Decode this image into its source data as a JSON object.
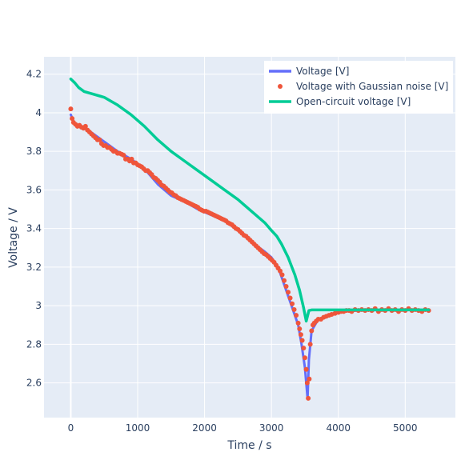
{
  "chart_data": {
    "type": "line",
    "title": "",
    "xlabel": "Time / s",
    "ylabel": "Voltage / V",
    "xlim": [
      -400,
      5750
    ],
    "ylim": [
      2.42,
      4.29
    ],
    "x_ticks": [
      0,
      1000,
      2000,
      3000,
      4000,
      5000
    ],
    "y_ticks": [
      2.6,
      2.8,
      3,
      3.2,
      3.4,
      3.6,
      3.8,
      4,
      4.2
    ],
    "x_tick_labels": [
      "0",
      "1000",
      "2000",
      "3000",
      "4000",
      "5000"
    ],
    "y_tick_labels": [
      "2.6",
      "2.8",
      "3",
      "3.2",
      "3.4",
      "3.6",
      "3.8",
      "4",
      "4.2"
    ],
    "grid": true,
    "legend_position": "top-right",
    "colors": {
      "plot_bg": "#e5ecf6",
      "grid": "#ffffff",
      "text": "#2a3f5f"
    },
    "series": [
      {
        "name": "Voltage [V]",
        "mode": "line",
        "color": "#636efa",
        "x": [
          0,
          60,
          150,
          300,
          500,
          700,
          900,
          1100,
          1300,
          1500,
          1700,
          1900,
          2100,
          2300,
          2500,
          2700,
          2900,
          3000,
          3100,
          3200,
          3300,
          3400,
          3450,
          3500,
          3540,
          3560,
          3600,
          3700,
          3850,
          4000,
          4300,
          4700,
          5000,
          5350
        ],
        "y": [
          3.99,
          3.94,
          3.93,
          3.9,
          3.85,
          3.8,
          3.76,
          3.71,
          3.63,
          3.57,
          3.54,
          3.5,
          3.47,
          3.44,
          3.39,
          3.33,
          3.28,
          3.25,
          3.2,
          3.1,
          3.0,
          2.9,
          2.8,
          2.68,
          2.52,
          2.72,
          2.87,
          2.93,
          2.95,
          2.97,
          2.975,
          2.978,
          2.978,
          2.978
        ]
      },
      {
        "name": "Voltage with Gaussian noise [V]",
        "mode": "markers",
        "color": "#ef553b",
        "x": [
          0,
          20,
          40,
          70,
          100,
          130,
          160,
          190,
          220,
          250,
          280,
          310,
          340,
          370,
          400,
          430,
          460,
          490,
          520,
          550,
          580,
          610,
          640,
          670,
          700,
          730,
          760,
          790,
          820,
          850,
          880,
          910,
          940,
          970,
          1000,
          1030,
          1060,
          1090,
          1120,
          1150,
          1180,
          1210,
          1240,
          1270,
          1300,
          1330,
          1360,
          1390,
          1420,
          1450,
          1480,
          1510,
          1540,
          1570,
          1600,
          1630,
          1660,
          1690,
          1720,
          1750,
          1780,
          1810,
          1840,
          1870,
          1900,
          1930,
          1960,
          1990,
          2020,
          2050,
          2080,
          2110,
          2140,
          2170,
          2200,
          2230,
          2260,
          2290,
          2320,
          2350,
          2380,
          2410,
          2440,
          2470,
          2500,
          2530,
          2560,
          2590,
          2620,
          2650,
          2680,
          2710,
          2740,
          2770,
          2800,
          2830,
          2860,
          2890,
          2920,
          2950,
          2980,
          3010,
          3040,
          3070,
          3100,
          3130,
          3160,
          3190,
          3220,
          3250,
          3280,
          3310,
          3340,
          3370,
          3400,
          3420,
          3440,
          3460,
          3480,
          3500,
          3520,
          3535,
          3550,
          3565,
          3580,
          3600,
          3620,
          3640,
          3670,
          3700,
          3740,
          3780,
          3820,
          3860,
          3900,
          3950,
          4000,
          4040,
          4080,
          4120,
          4160,
          4200,
          4250,
          4300,
          4350,
          4400,
          4450,
          4500,
          4550,
          4600,
          4650,
          4700,
          4750,
          4800,
          4850,
          4900,
          4950,
          5000,
          5050,
          5100,
          5150,
          5200,
          5250,
          5300,
          5350
        ],
        "y": [
          4.02,
          3.97,
          3.95,
          3.94,
          3.93,
          3.935,
          3.925,
          3.92,
          3.93,
          3.91,
          3.9,
          3.89,
          3.88,
          3.87,
          3.86,
          3.86,
          3.84,
          3.83,
          3.83,
          3.82,
          3.82,
          3.81,
          3.8,
          3.8,
          3.79,
          3.79,
          3.785,
          3.78,
          3.76,
          3.76,
          3.75,
          3.76,
          3.74,
          3.74,
          3.73,
          3.725,
          3.72,
          3.71,
          3.7,
          3.7,
          3.69,
          3.68,
          3.665,
          3.66,
          3.65,
          3.64,
          3.625,
          3.62,
          3.61,
          3.6,
          3.59,
          3.585,
          3.575,
          3.57,
          3.56,
          3.555,
          3.55,
          3.545,
          3.54,
          3.535,
          3.53,
          3.525,
          3.52,
          3.515,
          3.51,
          3.5,
          3.495,
          3.49,
          3.49,
          3.485,
          3.48,
          3.475,
          3.47,
          3.465,
          3.46,
          3.455,
          3.45,
          3.445,
          3.44,
          3.43,
          3.425,
          3.42,
          3.41,
          3.4,
          3.395,
          3.385,
          3.375,
          3.365,
          3.36,
          3.35,
          3.34,
          3.33,
          3.32,
          3.31,
          3.3,
          3.29,
          3.28,
          3.27,
          3.265,
          3.255,
          3.245,
          3.235,
          3.225,
          3.21,
          3.195,
          3.18,
          3.16,
          3.13,
          3.1,
          3.07,
          3.04,
          3.01,
          2.98,
          2.95,
          2.91,
          2.88,
          2.85,
          2.82,
          2.78,
          2.73,
          2.67,
          2.6,
          2.52,
          2.62,
          2.8,
          2.87,
          2.9,
          2.91,
          2.92,
          2.93,
          2.93,
          2.94,
          2.945,
          2.95,
          2.955,
          2.96,
          2.965,
          2.97,
          2.97,
          2.975,
          2.975,
          2.97,
          2.98,
          2.975,
          2.98,
          2.975,
          2.98,
          2.975,
          2.985,
          2.97,
          2.98,
          2.975,
          2.985,
          2.975,
          2.98,
          2.97,
          2.98,
          2.975,
          2.985,
          2.975,
          2.98,
          2.975,
          2.97,
          2.98,
          2.975
        ]
      },
      {
        "name": "Open-circuit voltage [V]",
        "mode": "line",
        "color": "#00cc96",
        "x": [
          0,
          60,
          120,
          200,
          300,
          500,
          700,
          900,
          1100,
          1300,
          1500,
          1700,
          1900,
          2100,
          2300,
          2500,
          2700,
          2900,
          3000,
          3080,
          3150,
          3250,
          3350,
          3420,
          3480,
          3520,
          3560,
          3600,
          4000,
          5350
        ],
        "y": [
          4.175,
          4.155,
          4.13,
          4.11,
          4.1,
          4.08,
          4.04,
          3.99,
          3.93,
          3.86,
          3.8,
          3.75,
          3.7,
          3.65,
          3.6,
          3.55,
          3.49,
          3.43,
          3.39,
          3.36,
          3.32,
          3.25,
          3.16,
          3.08,
          2.99,
          2.92,
          2.975,
          2.978,
          2.978,
          2.978
        ]
      }
    ]
  }
}
